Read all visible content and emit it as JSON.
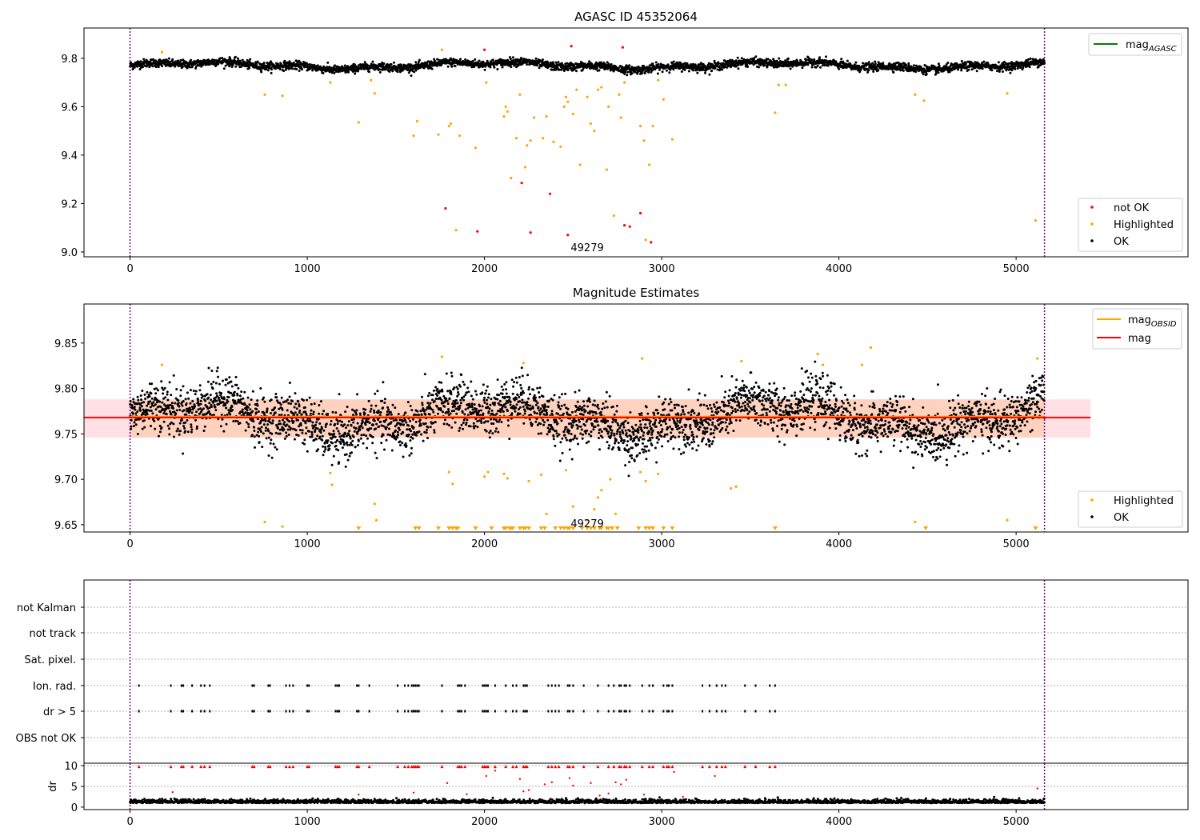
{
  "chart_data": [
    {
      "type": "scatter",
      "title": "AGASC ID 45352064",
      "xlim": [
        -260,
        5970
      ],
      "ylim": [
        8.98,
        9.925
      ],
      "xticks": [
        0,
        1000,
        2000,
        3000,
        4000,
        5000
      ],
      "yticks": [
        9.0,
        9.2,
        9.4,
        9.6,
        9.8
      ],
      "ytick_labels": [
        "9.0",
        "9.2",
        "9.4",
        "9.6",
        "9.8"
      ],
      "vlines": [
        0,
        5160
      ],
      "annotation": {
        "text": "49279",
        "x": 2580,
        "y": 9.0
      },
      "line_legend": [
        {
          "label": "mag",
          "sub": "AGASC",
          "color": "#008000"
        }
      ],
      "marker_legend": [
        {
          "label": "not OK",
          "color": "#ff0000"
        },
        {
          "label": "Highlighted",
          "color": "#ffa500"
        },
        {
          "label": "OK",
          "color": "#000000"
        }
      ],
      "series": {
        "ok": {
          "x_range": [
            0,
            5160
          ],
          "baseline": 9.77,
          "spread": 0.012,
          "color": "#000000"
        },
        "highlighted": {
          "color": "#ffa500",
          "points": [
            [
              180,
              9.825
            ],
            [
              760,
              9.65
            ],
            [
              860,
              9.645
            ],
            [
              1130,
              9.7
            ],
            [
              1290,
              9.535
            ],
            [
              1360,
              9.71
            ],
            [
              1380,
              9.655
            ],
            [
              1600,
              9.48
            ],
            [
              1620,
              9.54
            ],
            [
              1740,
              9.485
            ],
            [
              1760,
              9.835
            ],
            [
              1800,
              9.52
            ],
            [
              1810,
              9.53
            ],
            [
              1840,
              9.09
            ],
            [
              1860,
              9.48
            ],
            [
              1950,
              9.43
            ],
            [
              2010,
              9.7
            ],
            [
              2110,
              9.56
            ],
            [
              2120,
              9.6
            ],
            [
              2130,
              9.58
            ],
            [
              2150,
              9.305
            ],
            [
              2180,
              9.47
            ],
            [
              2200,
              9.65
            ],
            [
              2230,
              9.35
            ],
            [
              2240,
              9.44
            ],
            [
              2260,
              9.46
            ],
            [
              2280,
              9.555
            ],
            [
              2330,
              9.47
            ],
            [
              2350,
              9.56
            ],
            [
              2390,
              9.455
            ],
            [
              2430,
              9.435
            ],
            [
              2450,
              9.6
            ],
            [
              2460,
              9.64
            ],
            [
              2470,
              9.62
            ],
            [
              2500,
              9.57
            ],
            [
              2520,
              9.67
            ],
            [
              2540,
              9.36
            ],
            [
              2580,
              9.64
            ],
            [
              2600,
              9.53
            ],
            [
              2620,
              9.5
            ],
            [
              2640,
              9.67
            ],
            [
              2660,
              9.68
            ],
            [
              2690,
              9.34
            ],
            [
              2700,
              9.6
            ],
            [
              2730,
              9.15
            ],
            [
              2760,
              9.65
            ],
            [
              2770,
              9.555
            ],
            [
              2790,
              9.7
            ],
            [
              2880,
              9.52
            ],
            [
              2900,
              9.46
            ],
            [
              2910,
              9.05
            ],
            [
              2930,
              9.36
            ],
            [
              2950,
              9.52
            ],
            [
              2980,
              9.71
            ],
            [
              3010,
              9.63
            ],
            [
              3060,
              9.465
            ],
            [
              3640,
              9.575
            ],
            [
              3660,
              9.69
            ],
            [
              3700,
              9.69
            ],
            [
              4430,
              9.65
            ],
            [
              4480,
              9.625
            ],
            [
              4950,
              9.655
            ],
            [
              5110,
              9.13
            ]
          ]
        },
        "not_ok": {
          "color": "#ff0000",
          "points": [
            [
              1780,
              9.18
            ],
            [
              1960,
              9.085
            ],
            [
              2000,
              9.835
            ],
            [
              2210,
              9.285
            ],
            [
              2260,
              9.08
            ],
            [
              2370,
              9.24
            ],
            [
              2470,
              9.07
            ],
            [
              2490,
              9.85
            ],
            [
              2780,
              9.845
            ],
            [
              2790,
              9.11
            ],
            [
              2820,
              9.105
            ],
            [
              2880,
              9.16
            ],
            [
              2940,
              9.04
            ]
          ]
        }
      }
    },
    {
      "type": "scatter",
      "title": "Magnitude Estimates",
      "xlim": [
        -260,
        5970
      ],
      "ylim": [
        9.642,
        9.893
      ],
      "xticks": [
        0,
        1000,
        2000,
        3000,
        4000,
        5000
      ],
      "yticks": [
        9.65,
        9.7,
        9.75,
        9.8,
        9.85
      ],
      "ytick_labels": [
        "9.65",
        "9.70",
        "9.75",
        "9.80",
        "9.85"
      ],
      "vlines": [
        0,
        5160
      ],
      "annotation": {
        "text": "49279",
        "x": 2580,
        "y": 9.65
      },
      "obsid_band": {
        "x_range": [
          0,
          5160
        ],
        "low": 9.746,
        "high": 9.788,
        "color": "#ffd2c0"
      },
      "mag_band": {
        "x_range": [
          -260,
          5420
        ],
        "low": 9.746,
        "high": 9.788,
        "color": "#ffe0e4"
      },
      "mag_obsid": {
        "value": 9.769,
        "x_range": [
          0,
          5160
        ],
        "color": "#ffa500"
      },
      "mag": {
        "value": 9.768,
        "x_range": [
          -260,
          5420
        ],
        "color": "#ff0000"
      },
      "line_legend": [
        {
          "label": "mag",
          "sub": "OBSID",
          "color": "#ffa500"
        },
        {
          "label": "mag",
          "sub": "",
          "color": "#ff0000"
        }
      ],
      "marker_legend": [
        {
          "label": "Highlighted",
          "color": "#ffa500"
        },
        {
          "label": "OK",
          "color": "#000000"
        }
      ],
      "series": {
        "ok": {
          "x_range": [
            0,
            5160
          ],
          "baseline": 9.768,
          "spread": 0.018,
          "color": "#000000"
        },
        "highlighted": {
          "color": "#ffa500",
          "points": [
            [
              180,
              9.826
            ],
            [
              760,
              9.653
            ],
            [
              860,
              9.648
            ],
            [
              1130,
              9.707
            ],
            [
              1140,
              9.694
            ],
            [
              1380,
              9.673
            ],
            [
              1390,
              9.655
            ],
            [
              1760,
              9.835
            ],
            [
              1800,
              9.708
            ],
            [
              1820,
              9.695
            ],
            [
              2000,
              9.703
            ],
            [
              2020,
              9.708
            ],
            [
              2110,
              9.706
            ],
            [
              2130,
              9.701
            ],
            [
              2220,
              9.828
            ],
            [
              2250,
              9.698
            ],
            [
              2320,
              9.705
            ],
            [
              2350,
              9.662
            ],
            [
              2460,
              9.71
            ],
            [
              2500,
              9.67
            ],
            [
              2580,
              9.655
            ],
            [
              2620,
              9.667
            ],
            [
              2640,
              9.68
            ],
            [
              2660,
              9.688
            ],
            [
              2710,
              9.7
            ],
            [
              2740,
              9.662
            ],
            [
              2880,
              9.708
            ],
            [
              2890,
              9.833
            ],
            [
              2910,
              9.698
            ],
            [
              2980,
              9.706
            ],
            [
              3390,
              9.69
            ],
            [
              3420,
              9.692
            ],
            [
              3450,
              9.83
            ],
            [
              3880,
              9.838
            ],
            [
              3910,
              9.826
            ],
            [
              4130,
              9.826
            ],
            [
              4180,
              9.845
            ],
            [
              4430,
              9.653
            ],
            [
              4950,
              9.655
            ],
            [
              5120,
              9.833
            ]
          ]
        },
        "below_limit_x": [
          1290,
          1610,
          1630,
          1740,
          1800,
          1820,
          1840,
          1850,
          1950,
          2040,
          2110,
          2120,
          2140,
          2150,
          2160,
          2200,
          2220,
          2230,
          2250,
          2320,
          2340,
          2400,
          2430,
          2450,
          2470,
          2480,
          2500,
          2550,
          2580,
          2600,
          2620,
          2650,
          2660,
          2690,
          2700,
          2720,
          2750,
          2870,
          2910,
          2930,
          2950,
          3010,
          3060,
          3640,
          4490,
          5110
        ]
      }
    },
    {
      "type": "scatter",
      "xlim": [
        -260,
        5970
      ],
      "xticks": [
        0,
        1000,
        2000,
        3000,
        4000,
        5000
      ],
      "vlines": [
        0,
        5160
      ],
      "flag_rows": [
        "not Kalman",
        "not track",
        "Sat. pixel.",
        "Ion. rad.",
        "dr > 5",
        "OBS not OK"
      ],
      "flag_x": [
        50,
        230,
        290,
        300,
        350,
        400,
        420,
        450,
        690,
        700,
        780,
        790,
        880,
        900,
        920,
        1000,
        1010,
        1160,
        1170,
        1180,
        1280,
        1290,
        1350,
        1510,
        1550,
        1570,
        1590,
        1600,
        1610,
        1620,
        1630,
        1760,
        1850,
        1860,
        1870,
        1890,
        1990,
        2000,
        2010,
        2020,
        2060,
        2120,
        2160,
        2180,
        2220,
        2230,
        2240,
        2360,
        2380,
        2400,
        2420,
        2470,
        2480,
        2500,
        2560,
        2640,
        2700,
        2730,
        2760,
        2770,
        2790,
        2800,
        2820,
        2890,
        2930,
        2950,
        3010,
        3030,
        3040,
        3060,
        3230,
        3270,
        3310,
        3340,
        3360,
        3470,
        3530,
        3610,
        3640
      ],
      "dr_axis": {
        "ylabel": "dr",
        "ylim": [
          -0.6,
          10.6
        ],
        "yticks": [
          0,
          5,
          10
        ]
      },
      "dr_series": {
        "x_range": [
          0,
          5160
        ],
        "baseline": 1.0,
        "spread": 0.8,
        "color": "#000000",
        "high_color": "#ff0000"
      }
    }
  ]
}
